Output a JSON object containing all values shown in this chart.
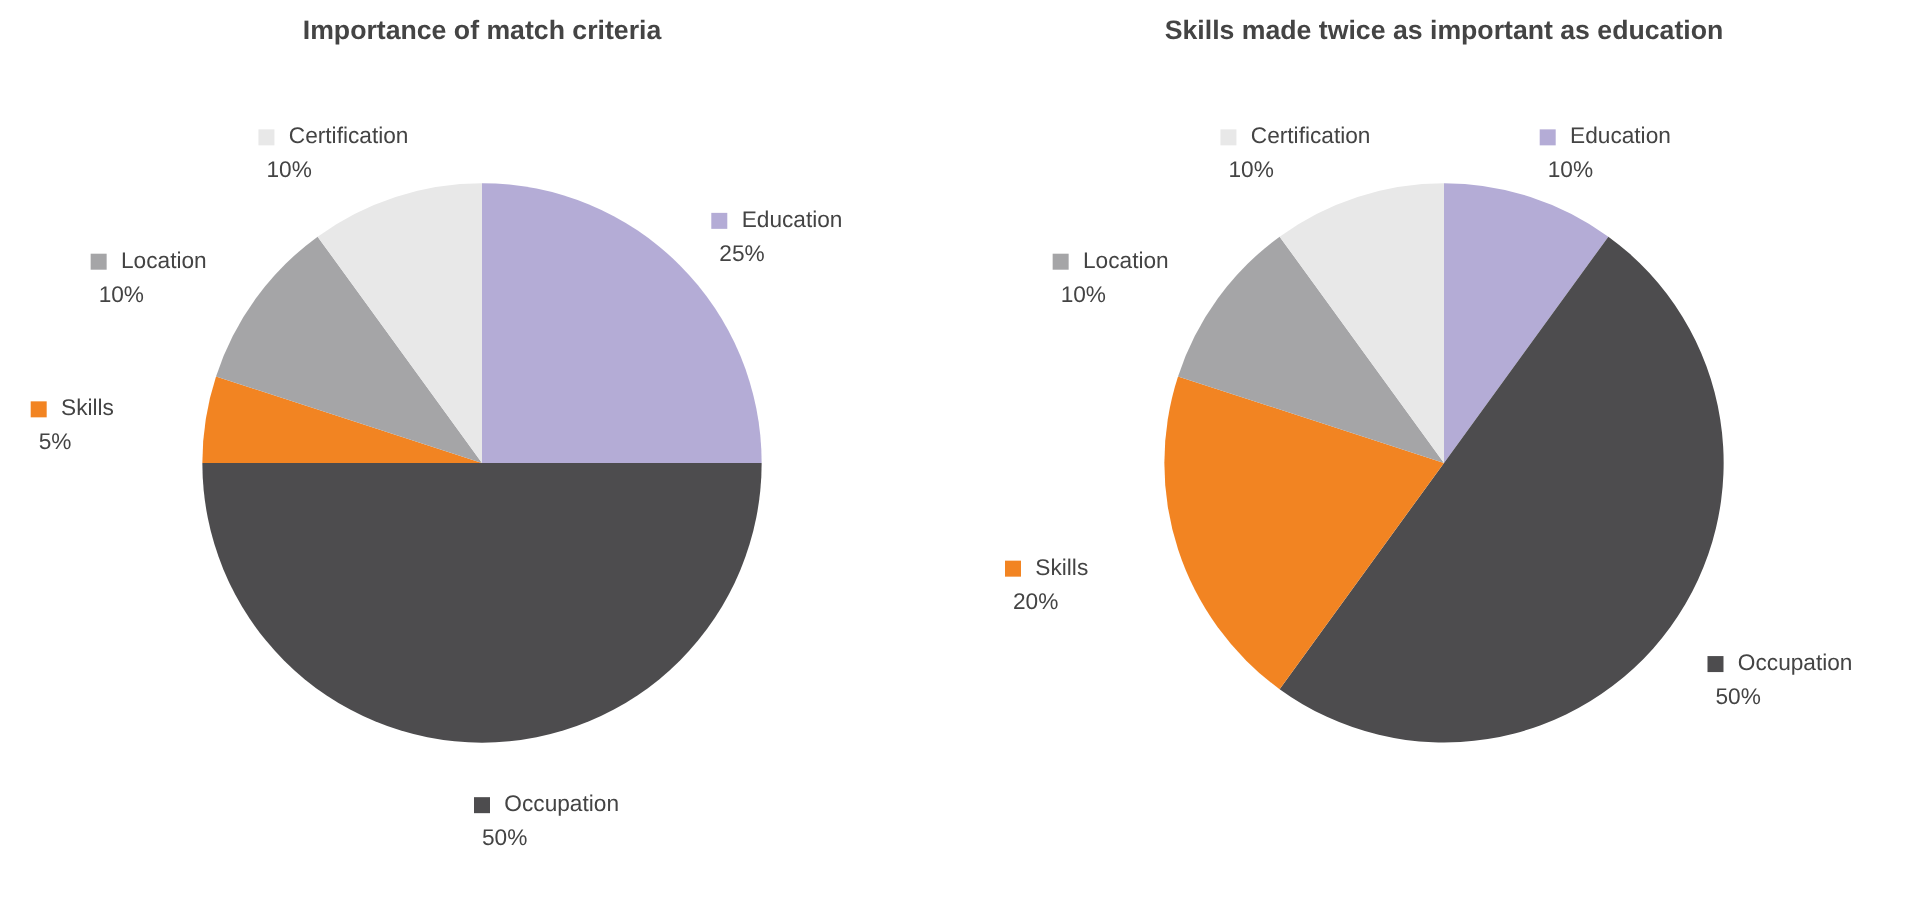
{
  "chart_data": [
    {
      "type": "pie",
      "title": "Importance of match criteria",
      "categories": [
        "Education",
        "Occupation",
        "Skills",
        "Location",
        "Certification"
      ],
      "values": [
        25,
        50,
        5,
        10,
        10
      ],
      "value_labels": [
        "25%",
        "50%",
        "5%",
        "10%",
        "10%"
      ],
      "colors": [
        "#b4acd6",
        "#4d4c4e",
        "#f28422",
        "#a5a5a7",
        "#e8e8e8"
      ],
      "legend": true
    },
    {
      "type": "pie",
      "title": "Skills made twice as important as education",
      "categories": [
        "Education",
        "Occupation",
        "Skills",
        "Location",
        "Certification"
      ],
      "values": [
        10,
        50,
        20,
        10,
        10
      ],
      "value_labels": [
        "10%",
        "50%",
        "20%",
        "10%",
        "10%"
      ],
      "colors": [
        "#b4acd6",
        "#4d4c4e",
        "#f28422",
        "#a5a5a7",
        "#e8e8e8"
      ],
      "legend": true
    }
  ]
}
